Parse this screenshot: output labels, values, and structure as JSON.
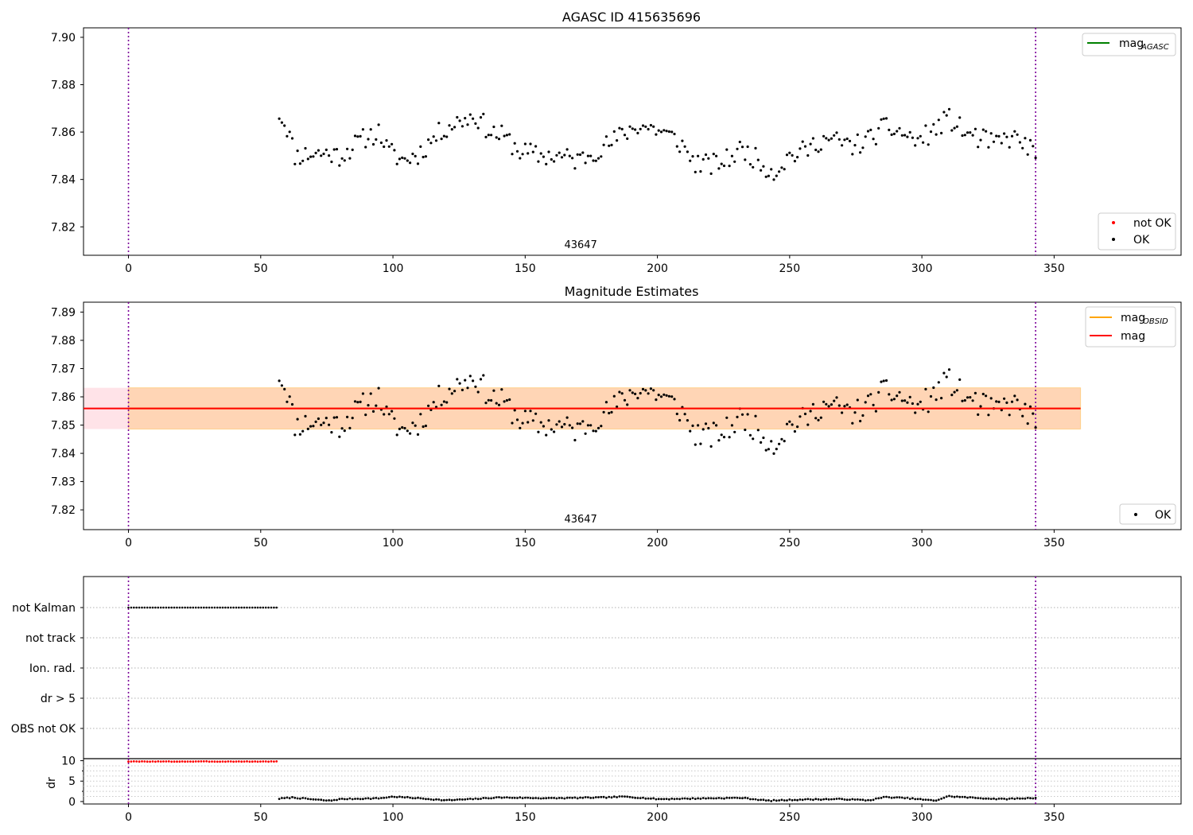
{
  "figure_title": "AGASC ID 415635696",
  "chart_data": [
    {
      "type": "scatter",
      "title": "AGASC ID 415635696",
      "xlim": [
        -17,
        398
      ],
      "ylim": [
        7.808,
        7.904
      ],
      "xticks": [
        0,
        50,
        100,
        150,
        200,
        250,
        300,
        350
      ],
      "yticks": [
        7.82,
        7.84,
        7.86,
        7.88,
        7.9
      ],
      "annotation": "43647",
      "vlines": [
        0,
        343
      ],
      "legend_lines": [
        {
          "name": "mag",
          "sub": "AGASC",
          "color": "#008000"
        }
      ],
      "legend_points": [
        {
          "name": "not OK",
          "color": "#ff0000"
        },
        {
          "name": "OK",
          "color": "#000000"
        }
      ],
      "series": [
        {
          "name": "OK",
          "x_start": 57,
          "x_end": 343,
          "count": 290,
          "anchors": [
            [
              57,
              7.868
            ],
            [
              60,
              7.862
            ],
            [
              63,
              7.85
            ],
            [
              70,
              7.851
            ],
            [
              76,
              7.851
            ],
            [
              80,
              7.85
            ],
            [
              90,
              7.858
            ],
            [
              95,
              7.86
            ],
            [
              98,
              7.852
            ],
            [
              104,
              7.848
            ],
            [
              110,
              7.851
            ],
            [
              115,
              7.857
            ],
            [
              120,
              7.862
            ],
            [
              126,
              7.865
            ],
            [
              131,
              7.867
            ],
            [
              137,
              7.86
            ],
            [
              142,
              7.858
            ],
            [
              148,
              7.852
            ],
            [
              155,
              7.85
            ],
            [
              162,
              7.85
            ],
            [
              170,
              7.848
            ],
            [
              176,
              7.852
            ],
            [
              182,
              7.855
            ],
            [
              188,
              7.86
            ],
            [
              193,
              7.863
            ],
            [
              200,
              7.861
            ],
            [
              205,
              7.858
            ],
            [
              209,
              7.855
            ],
            [
              214,
              7.847
            ],
            [
              220,
              7.846
            ],
            [
              226,
              7.848
            ],
            [
              232,
              7.853
            ],
            [
              238,
              7.848
            ],
            [
              244,
              7.843
            ],
            [
              250,
              7.85
            ],
            [
              256,
              7.852
            ],
            [
              262,
              7.857
            ],
            [
              268,
              7.856
            ],
            [
              274,
              7.854
            ],
            [
              280,
              7.857
            ],
            [
              286,
              7.862
            ],
            [
              292,
              7.86
            ],
            [
              298,
              7.856
            ],
            [
              304,
              7.86
            ],
            [
              310,
              7.866
            ],
            [
              316,
              7.86
            ],
            [
              322,
              7.857
            ],
            [
              328,
              7.855
            ],
            [
              334,
              7.858
            ],
            [
              340,
              7.854
            ],
            [
              343,
              7.85
            ]
          ],
          "noise": 0.0045,
          "seed": 11
        }
      ]
    },
    {
      "type": "scatter",
      "title": "Magnitude Estimates",
      "xlim": [
        -17,
        398
      ],
      "ylim": [
        7.813,
        7.8935
      ],
      "xticks": [
        0,
        50,
        100,
        150,
        200,
        250,
        300,
        350
      ],
      "yticks": [
        7.82,
        7.83,
        7.84,
        7.85,
        7.86,
        7.87,
        7.88,
        7.89
      ],
      "annotation": "43647",
      "vlines": [
        0,
        343
      ],
      "mag": 7.8559,
      "mag_band": [
        7.8486,
        7.8632
      ],
      "band_x": [
        -17,
        360
      ],
      "legend_lines": [
        {
          "name": "mag",
          "sub": "OBSID",
          "color": "#ffa500"
        },
        {
          "name": "mag",
          "sub": "",
          "color": "#ff0000"
        }
      ],
      "legend_points": [
        {
          "name": "OK",
          "color": "#000000"
        }
      ],
      "series": [
        {
          "name": "OK",
          "x_start": 57,
          "x_end": 343,
          "count": 290,
          "anchors": [
            [
              57,
              7.868
            ],
            [
              60,
              7.862
            ],
            [
              63,
              7.85
            ],
            [
              70,
              7.851
            ],
            [
              76,
              7.851
            ],
            [
              80,
              7.85
            ],
            [
              90,
              7.858
            ],
            [
              95,
              7.86
            ],
            [
              98,
              7.852
            ],
            [
              104,
              7.848
            ],
            [
              110,
              7.851
            ],
            [
              115,
              7.857
            ],
            [
              120,
              7.862
            ],
            [
              126,
              7.865
            ],
            [
              131,
              7.867
            ],
            [
              137,
              7.86
            ],
            [
              142,
              7.858
            ],
            [
              148,
              7.852
            ],
            [
              155,
              7.85
            ],
            [
              162,
              7.85
            ],
            [
              170,
              7.848
            ],
            [
              176,
              7.852
            ],
            [
              182,
              7.855
            ],
            [
              188,
              7.86
            ],
            [
              193,
              7.863
            ],
            [
              200,
              7.861
            ],
            [
              205,
              7.858
            ],
            [
              209,
              7.855
            ],
            [
              214,
              7.847
            ],
            [
              220,
              7.846
            ],
            [
              226,
              7.848
            ],
            [
              232,
              7.853
            ],
            [
              238,
              7.848
            ],
            [
              244,
              7.843
            ],
            [
              250,
              7.85
            ],
            [
              256,
              7.852
            ],
            [
              262,
              7.857
            ],
            [
              268,
              7.856
            ],
            [
              274,
              7.854
            ],
            [
              280,
              7.857
            ],
            [
              286,
              7.862
            ],
            [
              292,
              7.86
            ],
            [
              298,
              7.856
            ],
            [
              304,
              7.86
            ],
            [
              310,
              7.866
            ],
            [
              316,
              7.86
            ],
            [
              322,
              7.857
            ],
            [
              328,
              7.855
            ],
            [
              334,
              7.858
            ],
            [
              340,
              7.854
            ],
            [
              343,
              7.85
            ]
          ],
          "noise": 0.0045,
          "seed": 11
        }
      ]
    },
    {
      "type": "scatter",
      "title": "",
      "xlim": [
        -17,
        398
      ],
      "yticks_flags": [
        "not Kalman",
        "not track",
        "Ion. rad.",
        "dr > 5",
        "OBS not OK"
      ],
      "vlines": [
        0,
        343
      ],
      "flag_series": [
        {
          "flag": "not Kalman",
          "x_start": 0,
          "x_end": 56,
          "count": 56,
          "color": "#000000"
        }
      ]
    },
    {
      "type": "scatter",
      "title": "",
      "xlim": [
        -17,
        398
      ],
      "ylim": [
        -0.6,
        10.5
      ],
      "ylabel": "dr",
      "yticks": [
        0,
        5,
        10
      ],
      "xticks": [
        0,
        50,
        100,
        150,
        200,
        250,
        300,
        350
      ],
      "vlines": [
        0,
        343
      ],
      "series": [
        {
          "name": "dr not OK",
          "color": "#ff0000",
          "x_start": 0,
          "x_end": 56,
          "count": 56,
          "anchors": [
            [
              0,
              9.8
            ],
            [
              56,
              9.8
            ]
          ],
          "noise": 0.05,
          "seed": 3
        },
        {
          "name": "dr OK",
          "color": "#000000",
          "x_start": 57,
          "x_end": 343,
          "count": 290,
          "anchors": [
            [
              57,
              0.7
            ],
            [
              62,
              1.0
            ],
            [
              70,
              0.5
            ],
            [
              76,
              0.2
            ],
            [
              80,
              0.6
            ],
            [
              95,
              0.8
            ],
            [
              100,
              1.2
            ],
            [
              110,
              0.8
            ],
            [
              120,
              0.3
            ],
            [
              130,
              0.6
            ],
            [
              140,
              1.0
            ],
            [
              160,
              0.8
            ],
            [
              180,
              1.0
            ],
            [
              188,
              1.2
            ],
            [
              200,
              0.6
            ],
            [
              220,
              0.8
            ],
            [
              232,
              0.9
            ],
            [
              242,
              0.2
            ],
            [
              255,
              0.5
            ],
            [
              270,
              0.6
            ],
            [
              280,
              0.3
            ],
            [
              286,
              1.1
            ],
            [
              295,
              0.8
            ],
            [
              305,
              0.2
            ],
            [
              310,
              1.3
            ],
            [
              320,
              0.9
            ],
            [
              330,
              0.6
            ],
            [
              343,
              0.9
            ]
          ],
          "noise": 0.12,
          "seed": 7
        }
      ]
    }
  ]
}
